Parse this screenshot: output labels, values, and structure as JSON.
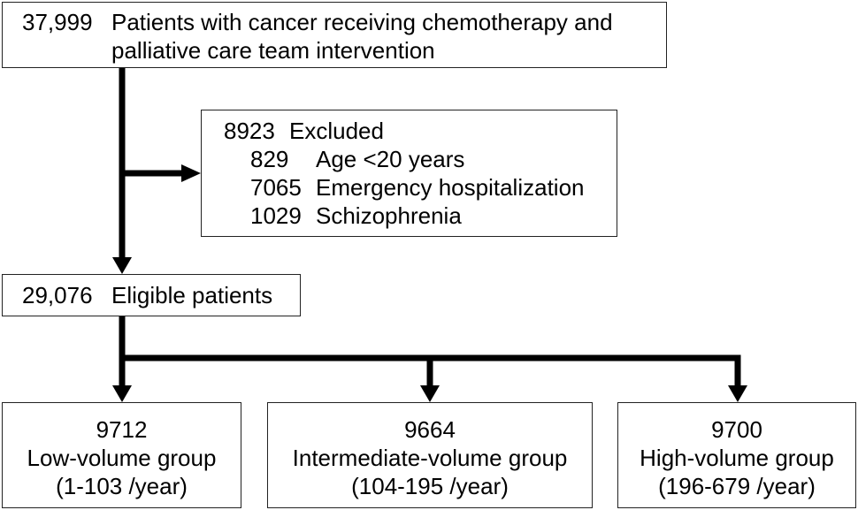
{
  "top_box": {
    "count": "37,999",
    "line1": "Patients with cancer receiving chemotherapy and",
    "line2": "palliative care team intervention"
  },
  "excluded_box": {
    "count": "8923",
    "label": "Excluded",
    "items": [
      {
        "count": "829",
        "label": "Age <20 years"
      },
      {
        "count": "7065",
        "label": "Emergency hospitalization"
      },
      {
        "count": "1029",
        "label": "Schizophrenia"
      }
    ]
  },
  "eligible_box": {
    "count": "29,076",
    "label": "Eligible patients"
  },
  "groups": [
    {
      "count": "9712",
      "label": "Low-volume group",
      "range": "(1-103 /year)"
    },
    {
      "count": "9664",
      "label": "Intermediate-volume group",
      "range": "(104-195 /year)"
    },
    {
      "count": "9700",
      "label": "High-volume group",
      "range": "(196-679 /year)"
    }
  ],
  "colors": {
    "line": "#000000",
    "border": "#222222",
    "background": "#ffffff"
  }
}
